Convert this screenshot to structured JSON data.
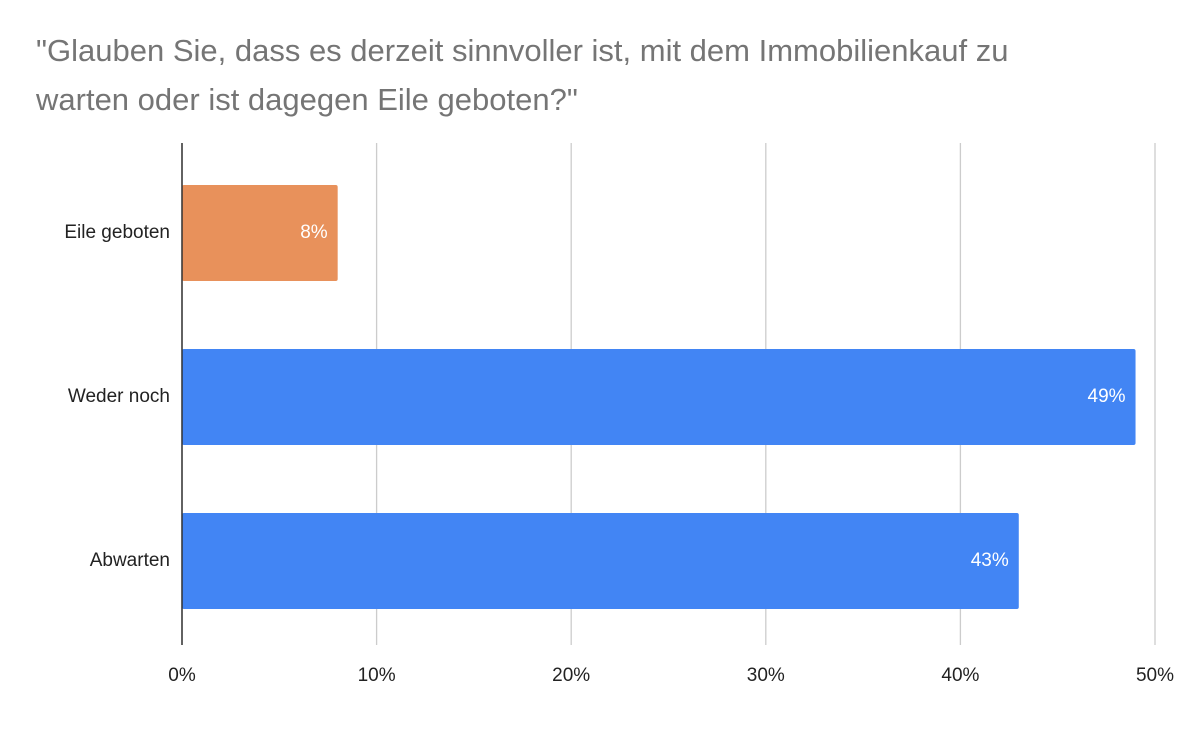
{
  "chart_data": {
    "type": "hbar",
    "title": "\"Glauben Sie, dass es derzeit sinnvoller ist, mit dem Immobilienkauf zu warten oder ist dagegen Eile geboten?\"",
    "categories": [
      "Eile geboten",
      "Weder noch",
      "Abwarten"
    ],
    "values": [
      8,
      49,
      43
    ],
    "value_labels": [
      "8%",
      "49%",
      "43%"
    ],
    "colors": [
      "#e8915b",
      "#4285f4",
      "#4285f4"
    ],
    "xlim": [
      0,
      50
    ],
    "xticks": [
      {
        "value": 0,
        "label": "0%"
      },
      {
        "value": 10,
        "label": "10%"
      },
      {
        "value": 20,
        "label": "20%"
      },
      {
        "value": 30,
        "label": "30%"
      },
      {
        "value": 40,
        "label": "40%"
      },
      {
        "value": 50,
        "label": "50%"
      }
    ],
    "grid": true
  }
}
